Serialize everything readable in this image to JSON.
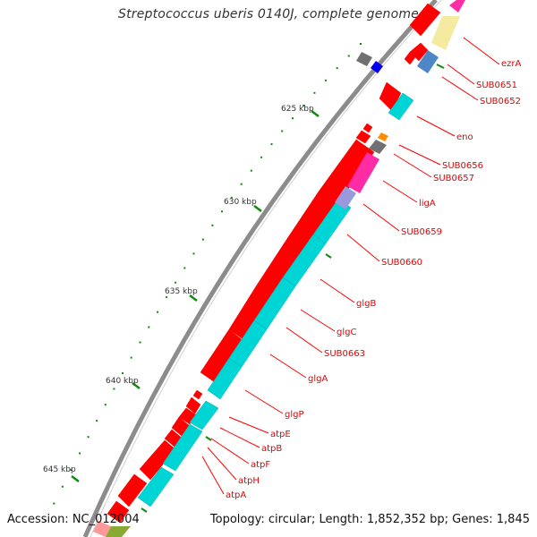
{
  "title": "Streptococcus uberis 0140J, complete genome",
  "footer": {
    "accession": "Accession: NC_012004",
    "summary": "Topology: circular; Length: 1,852,352 bp; Genes: 1,845"
  },
  "colors": {
    "backbone": "#8c8c8c",
    "forward": "#ff0000",
    "reverse": "#00d5d5",
    "label": "#e60000",
    "tick": "#118811",
    "scale_text": "#333333"
  },
  "scale": {
    "ticks": [
      {
        "label": "625 kbp"
      },
      {
        "label": "630 kbp"
      },
      {
        "label": "635 kbp"
      },
      {
        "label": "640 kbp"
      },
      {
        "label": "645 kbp"
      }
    ]
  },
  "gene_labels": [
    "ezrA",
    "SUB0651",
    "SUB0652",
    "eno",
    "SUB0656",
    "SUB0657",
    "ligA",
    "SUB0659",
    "SUB0660",
    "glgB",
    "glgC",
    "SUB0663",
    "glgA",
    "glgP",
    "atpE",
    "atpB",
    "atpF",
    "atpH",
    "atpA"
  ]
}
